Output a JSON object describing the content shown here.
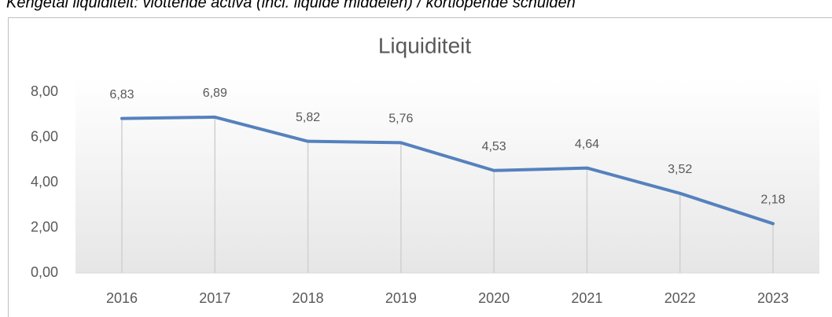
{
  "chart_data": {
    "type": "line",
    "subtitle": "Kengetal liquiditeit: vlottende activa (incl. liquide middelen) / kortlopende schulden",
    "title": "Liquiditeit",
    "categories": [
      "2016",
      "2017",
      "2018",
      "2019",
      "2020",
      "2021",
      "2022",
      "2023"
    ],
    "values": [
      6.83,
      6.89,
      5.82,
      5.76,
      4.53,
      4.64,
      3.52,
      2.18
    ],
    "value_labels": [
      "6,83",
      "6,89",
      "5,82",
      "5,76",
      "4,53",
      "4,64",
      "3,52",
      "2,18"
    ],
    "color": "#5581be",
    "ylim": [
      0,
      8
    ],
    "yticks": [
      {
        "value": 0,
        "label": "0,00"
      },
      {
        "value": 2,
        "label": "2,00"
      },
      {
        "value": 4,
        "label": "4,00"
      },
      {
        "value": 6,
        "label": "6,00"
      },
      {
        "value": 8,
        "label": "8,00"
      }
    ],
    "drop_lines": true
  }
}
